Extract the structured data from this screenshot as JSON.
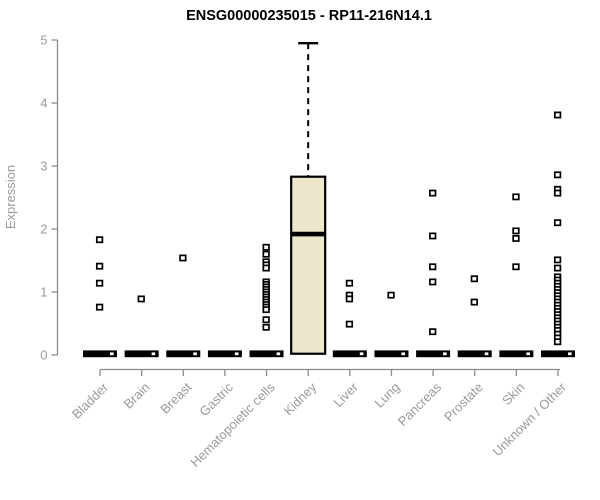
{
  "title": "ENSG00000235015 - RP11-216N14.1",
  "chart_data": {
    "type": "boxplot",
    "title": "ENSG00000235015 - RP11-216N14.1",
    "xlabel": "",
    "ylabel": "Expression",
    "ylim": [
      0,
      5
    ],
    "yticks": [
      0,
      1,
      2,
      3,
      4,
      5
    ],
    "grid": "off",
    "legend": "none",
    "categories": [
      "Bladder",
      "Brain",
      "Breast",
      "Gastric",
      "Hematopoietic cells",
      "Kidney",
      "Liver",
      "Lung",
      "Pancreas",
      "Prostate",
      "Skin",
      "Unknown / Other"
    ],
    "colors": {
      "box_fill": "#EDE7CC",
      "box_border": "#000000",
      "median": "#000000",
      "whisker": "#000000",
      "point_fill": "#FFFFFF",
      "point_border": "#000000",
      "axis_line": "#8C8C8C",
      "axis_text": "#9A9A9A",
      "title_text": "#000000",
      "background": "#FFFFFF"
    },
    "series": [
      {
        "category": "Bladder",
        "box_collapsed_at_zero": true,
        "outlier_points": [
          1.83,
          1.41,
          1.14,
          0.76
        ]
      },
      {
        "category": "Brain",
        "box_collapsed_at_zero": true,
        "outlier_points": [
          0.89
        ]
      },
      {
        "category": "Breast",
        "box_collapsed_at_zero": true,
        "outlier_points": [
          1.54
        ]
      },
      {
        "category": "Gastric",
        "box_collapsed_at_zero": true,
        "outlier_points": []
      },
      {
        "category": "Hematopoietic cells",
        "box_collapsed_at_zero": true,
        "outlier_points": [
          1.71,
          1.6,
          1.48,
          1.43,
          1.38,
          1.16,
          1.12,
          1.08,
          1.04,
          1.0,
          0.96,
          0.92,
          0.88,
          0.84,
          0.8,
          0.76,
          0.72,
          0.56,
          0.44
        ]
      },
      {
        "category": "Kidney",
        "box_collapsed_at_zero": false,
        "box": {
          "whisker_low": 0.02,
          "q1": 0.02,
          "median": 1.92,
          "q3": 2.83,
          "whisker_high": 4.95
        },
        "outlier_points": []
      },
      {
        "category": "Liver",
        "box_collapsed_at_zero": true,
        "outlier_points": [
          1.14,
          0.95,
          0.89,
          0.49
        ]
      },
      {
        "category": "Lung",
        "box_collapsed_at_zero": true,
        "outlier_points": [
          0.95
        ]
      },
      {
        "category": "Pancreas",
        "box_collapsed_at_zero": true,
        "outlier_points": [
          2.57,
          1.89,
          1.4,
          1.16,
          0.37
        ]
      },
      {
        "category": "Prostate",
        "box_collapsed_at_zero": true,
        "outlier_points": [
          1.21,
          0.84
        ]
      },
      {
        "category": "Skin",
        "box_collapsed_at_zero": true,
        "outlier_points": [
          2.51,
          1.97,
          1.85,
          1.4
        ]
      },
      {
        "category": "Unknown / Other",
        "box_collapsed_at_zero": true,
        "outlier_points": [
          3.81,
          2.86,
          2.63,
          2.57,
          2.1,
          1.51,
          1.38,
          1.24,
          1.19,
          1.14,
          1.09,
          1.04,
          0.99,
          0.94,
          0.89,
          0.84,
          0.79,
          0.74,
          0.69,
          0.64,
          0.59,
          0.54,
          0.49,
          0.44,
          0.39,
          0.33,
          0.27,
          0.21
        ]
      }
    ]
  }
}
